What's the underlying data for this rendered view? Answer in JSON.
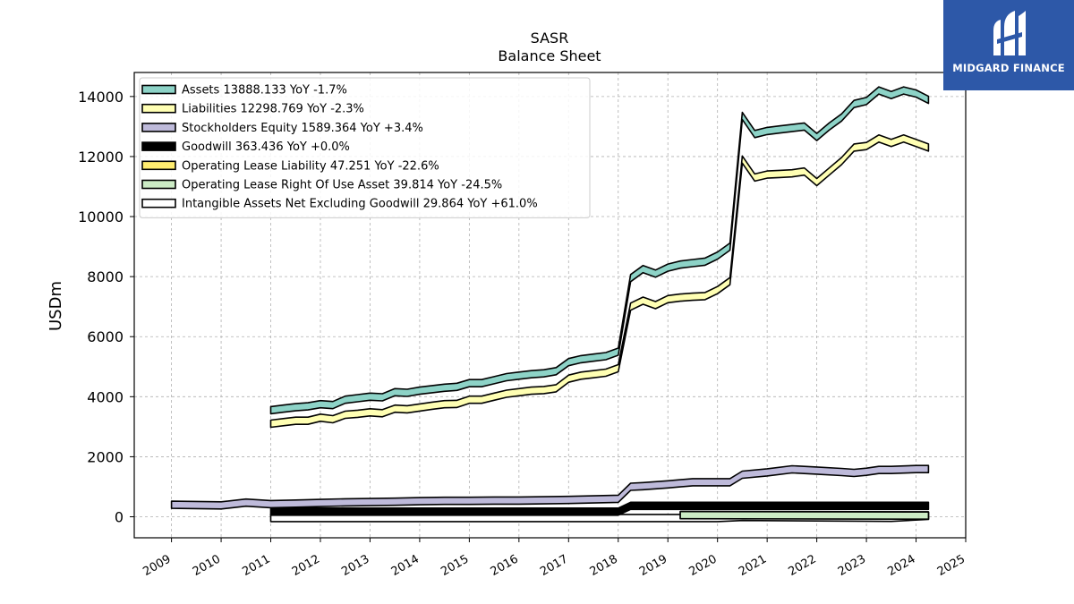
{
  "brand": {
    "name": "MIDGARD FINANCE",
    "color": "#2d58a8"
  },
  "chart_data": {
    "type": "area",
    "title": "SASR",
    "subtitle": "Balance  Sheet",
    "xlabel": "",
    "ylabel": "USDm",
    "xlim": [
      2008.25,
      2025.0
    ],
    "ylim": [
      -700,
      14800
    ],
    "x_ticks": [
      "2009",
      "2010",
      "2011",
      "2012",
      "2013",
      "2014",
      "2015",
      "2016",
      "2017",
      "2018",
      "2019",
      "2020",
      "2021",
      "2022",
      "2023",
      "2024",
      "2025"
    ],
    "y_ticks": [
      0,
      2000,
      4000,
      6000,
      8000,
      10000,
      12000,
      14000
    ],
    "grid": true,
    "legend_position": "top-left",
    "series": [
      {
        "name": "Assets",
        "legend": "Assets  13888.133 YoY -1.7%",
        "color": "#8dd3c7",
        "x": [
          2011.0,
          2011.25,
          2011.5,
          2011.75,
          2012.0,
          2012.25,
          2012.5,
          2012.75,
          2013.0,
          2013.25,
          2013.5,
          2013.75,
          2014.0,
          2014.25,
          2014.5,
          2014.75,
          2015.0,
          2015.25,
          2015.5,
          2015.75,
          2016.0,
          2016.25,
          2016.5,
          2016.75,
          2017.0,
          2017.25,
          2017.5,
          2017.75,
          2018.0,
          2018.25,
          2018.5,
          2018.75,
          2019.0,
          2019.25,
          2019.5,
          2019.75,
          2020.0,
          2020.25,
          2020.5,
          2020.75,
          2021.0,
          2021.25,
          2021.5,
          2021.75,
          2022.0,
          2022.25,
          2022.5,
          2022.75,
          2023.0,
          2023.25,
          2023.5,
          2023.75,
          2024.0,
          2024.25
        ],
        "y": [
          3550,
          3600,
          3650,
          3680,
          3750,
          3720,
          3900,
          3950,
          4000,
          3980,
          4150,
          4130,
          4200,
          4250,
          4300,
          4330,
          4450,
          4450,
          4550,
          4650,
          4700,
          4750,
          4780,
          4850,
          5150,
          5250,
          5300,
          5350,
          5500,
          7950,
          8250,
          8100,
          8300,
          8400,
          8450,
          8500,
          8700,
          9000,
          13350,
          12750,
          12850,
          12900,
          12950,
          13000,
          12650,
          13000,
          13300,
          13750,
          13850,
          14200,
          14050,
          14200,
          14100,
          13888.133
        ]
      },
      {
        "name": "Liabilities",
        "legend": "Liabilities  12298.769 YoY -2.3%",
        "color": "#ffffb3",
        "x": [
          2011.0,
          2011.25,
          2011.5,
          2011.75,
          2012.0,
          2012.25,
          2012.5,
          2012.75,
          2013.0,
          2013.25,
          2013.5,
          2013.75,
          2014.0,
          2014.25,
          2014.5,
          2014.75,
          2015.0,
          2015.25,
          2015.5,
          2015.75,
          2016.0,
          2016.25,
          2016.5,
          2016.75,
          2017.0,
          2017.25,
          2017.5,
          2017.75,
          2018.0,
          2018.25,
          2018.5,
          2018.75,
          2019.0,
          2019.25,
          2019.5,
          2019.75,
          2020.0,
          2020.25,
          2020.5,
          2020.75,
          2021.0,
          2021.25,
          2021.5,
          2021.75,
          2022.0,
          2022.25,
          2022.5,
          2022.75,
          2023.0,
          2023.25,
          2023.5,
          2023.75,
          2024.0,
          2024.25
        ],
        "y": [
          3100,
          3150,
          3200,
          3200,
          3300,
          3250,
          3400,
          3430,
          3480,
          3450,
          3600,
          3580,
          3640,
          3700,
          3750,
          3760,
          3900,
          3900,
          4000,
          4100,
          4150,
          4200,
          4220,
          4280,
          4600,
          4700,
          4750,
          4800,
          4950,
          7000,
          7200,
          7050,
          7250,
          7300,
          7330,
          7350,
          7550,
          7850,
          11900,
          11300,
          11400,
          11420,
          11440,
          11500,
          11150,
          11500,
          11850,
          12300,
          12350,
          12600,
          12450,
          12600,
          12450,
          12298.769
        ]
      },
      {
        "name": "Stockholders Equity",
        "legend": "Stockholders Equity  1589.364 YoY +3.4%",
        "color": "#bebada",
        "x": [
          2009.0,
          2010.0,
          2010.5,
          2011.0,
          2011.5,
          2012.0,
          2012.5,
          2013.0,
          2013.5,
          2014.0,
          2014.5,
          2015.0,
          2015.5,
          2016.0,
          2016.5,
          2017.0,
          2017.5,
          2018.0,
          2018.25,
          2018.5,
          2019.0,
          2019.5,
          2020.0,
          2020.25,
          2020.5,
          2021.0,
          2021.5,
          2022.0,
          2022.5,
          2022.75,
          2023.0,
          2023.25,
          2023.5,
          2024.0,
          2024.25
        ],
        "y": [
          400,
          380,
          470,
          420,
          440,
          460,
          480,
          490,
          500,
          520,
          530,
          530,
          540,
          540,
          550,
          560,
          580,
          600,
          1000,
          1020,
          1080,
          1150,
          1150,
          1150,
          1400,
          1480,
          1580,
          1540,
          1490,
          1460,
          1500,
          1560,
          1560,
          1589.364,
          1589.364
        ]
      },
      {
        "name": "Goodwill",
        "legend": "Goodwill  363.436 YoY +0.0%",
        "color": "#000000",
        "x": [
          2011.0,
          2018.0,
          2018.25,
          2024.25
        ],
        "y": [
          170,
          170,
          363.436,
          363.436
        ]
      },
      {
        "name": "Operating Lease Liability",
        "legend": "Operating Lease Liability  47.251 YoY -22.6%",
        "color": "#ffed6f",
        "x": [
          2019.25,
          2024.25
        ],
        "y": [
          60,
          47.251
        ]
      },
      {
        "name": "Operating Lease Right Of Use Asset",
        "legend": "Operating Lease Right Of Use Asset  39.814 YoY -24.5%",
        "color": "#ccebc5",
        "x": [
          2019.25,
          2024.25
        ],
        "y": [
          55,
          39.814
        ]
      },
      {
        "name": "Intangible Assets Net Excluding Goodwill",
        "legend": "Intangible Assets Net Excluding Goodwill  29.864 YoY +61.0%",
        "color": "#ffffff",
        "x": [
          2011.0,
          2018.0,
          2020.0,
          2020.5,
          2022.0,
          2023.5,
          2024.25
        ],
        "y": [
          -40,
          -40,
          -40,
          -5,
          -20,
          -35,
          29.864
        ]
      }
    ]
  }
}
